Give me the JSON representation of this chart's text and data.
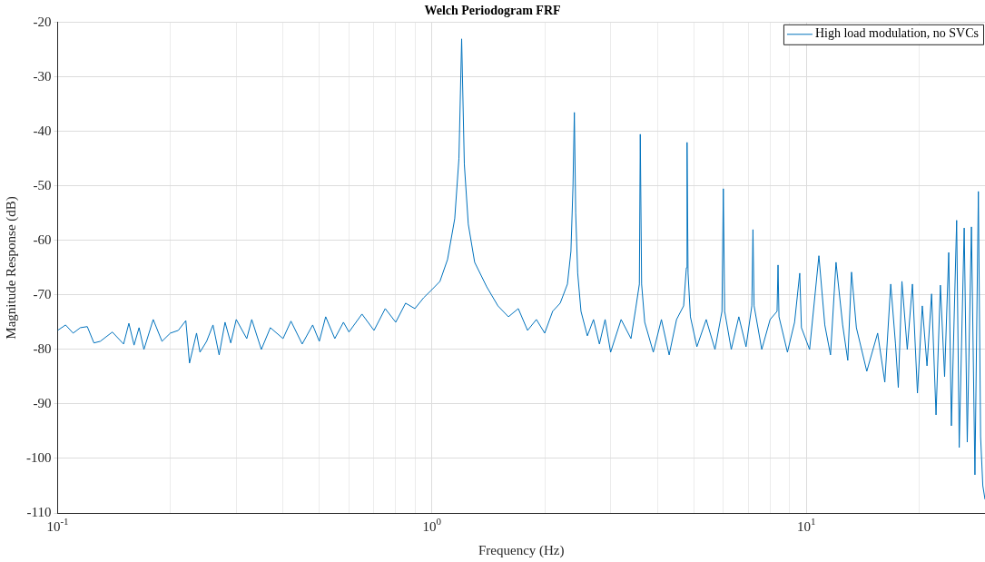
{
  "chart_data": {
    "type": "line",
    "title": "Welch Periodogram FRF",
    "xlabel": "Frequency (Hz)",
    "ylabel": "Magnitude Response (dB)",
    "log": "x",
    "grid": true,
    "legend": "top right",
    "marker": "none",
    "line_style": "solid",
    "xlim": [
      0.1,
      30
    ],
    "xticks": [
      {
        "value": 0.1,
        "label": "10$^{-1}$"
      },
      {
        "value": 0.2,
        "label": null
      },
      {
        "value": 0.3,
        "label": null
      },
      {
        "value": 0.4,
        "label": null
      },
      {
        "value": 0.5,
        "label": null
      },
      {
        "value": 0.6,
        "label": null
      },
      {
        "value": 0.7,
        "label": null
      },
      {
        "value": 0.8,
        "label": null
      },
      {
        "value": 0.9,
        "label": null
      },
      {
        "value": 1,
        "label": "10$^{0}$"
      },
      {
        "value": 2,
        "label": null
      },
      {
        "value": 3,
        "label": null
      },
      {
        "value": 4,
        "label": null
      },
      {
        "value": 5,
        "label": null
      },
      {
        "value": 6,
        "label": null
      },
      {
        "value": 7,
        "label": null
      },
      {
        "value": 8,
        "label": null
      },
      {
        "value": 9,
        "label": null
      },
      {
        "value": 10,
        "label": "10$^{1}$"
      },
      {
        "value": 20,
        "label": null
      }
    ],
    "ylim": [
      -110,
      -20
    ],
    "yticks": [
      -110,
      -100,
      -90,
      -80,
      -70,
      -60,
      -50,
      -40,
      -30,
      -20
    ],
    "x": [
      0.1,
      0.105,
      0.11,
      0.115,
      0.12,
      0.125,
      0.13,
      0.14,
      0.15,
      0.155,
      0.16,
      0.165,
      0.17,
      0.18,
      0.19,
      0.2,
      0.21,
      0.22,
      0.225,
      0.235,
      0.24,
      0.25,
      0.26,
      0.27,
      0.28,
      0.29,
      0.3,
      0.32,
      0.33,
      0.35,
      0.37,
      0.4,
      0.42,
      0.45,
      0.48,
      0.5,
      0.52,
      0.55,
      0.58,
      0.6,
      0.65,
      0.7,
      0.75,
      0.8,
      0.85,
      0.9,
      0.95,
      1.0,
      1.05,
      1.1,
      1.15,
      1.18,
      1.2,
      1.22,
      1.25,
      1.3,
      1.4,
      1.5,
      1.6,
      1.7,
      1.8,
      1.9,
      2.0,
      2.1,
      2.2,
      2.3,
      2.35,
      2.38,
      2.4,
      2.42,
      2.45,
      2.5,
      2.6,
      2.7,
      2.8,
      2.9,
      3.0,
      3.2,
      3.4,
      3.5,
      3.58,
      3.6,
      3.63,
      3.7,
      3.9,
      4.1,
      4.3,
      4.5,
      4.7,
      4.78,
      4.8,
      4.83,
      4.9,
      5.1,
      5.4,
      5.7,
      5.95,
      6.0,
      6.05,
      6.3,
      6.6,
      6.9,
      7.15,
      7.2,
      7.25,
      7.6,
      8.0,
      8.35,
      8.4,
      8.45,
      8.9,
      9.3,
      9.6,
      9.7,
      10.2,
      10.8,
      11.2,
      11.6,
      12.0,
      12.5,
      12.9,
      13.2,
      13.6,
      14.5,
      15.5,
      16.2,
      16.8,
      17.3,
      17.6,
      18.0,
      18.6,
      19.2,
      19.8,
      20.4,
      21.0,
      21.6,
      22.2,
      22.8,
      23.4,
      24.0,
      24.4,
      25.2,
      25.6,
      26.4,
      26.9,
      27.6,
      28.2,
      28.8,
      29.2,
      29.6,
      30
    ],
    "series": [
      {
        "name": "High load modulation, no SVCs",
        "color": "#0072bd",
        "values": [
          -76.5,
          -75.5,
          -77,
          -76,
          -75.8,
          -78.8,
          -78.5,
          -76.8,
          -79,
          -75.2,
          -79.2,
          -76,
          -80,
          -74.5,
          -78.5,
          -77,
          -76.5,
          -74.7,
          -82.5,
          -77,
          -80.5,
          -78.5,
          -75.5,
          -81,
          -75,
          -78.8,
          -74.5,
          -78,
          -74.5,
          -80,
          -76,
          -78,
          -74.8,
          -79,
          -75.5,
          -78.5,
          -74,
          -78,
          -75,
          -76.8,
          -73.5,
          -76.5,
          -72.5,
          -75,
          -71.5,
          -72.5,
          -70.5,
          -69,
          -67.5,
          -63.5,
          -56,
          -45,
          -23,
          -46,
          -57,
          -64,
          -68.5,
          -72,
          -74,
          -72.5,
          -76.5,
          -74.5,
          -77,
          -73,
          -71.5,
          -68,
          -62,
          -50,
          -36.5,
          -55,
          -66,
          -73,
          -77.5,
          -74.5,
          -79,
          -74.5,
          -80.5,
          -74.5,
          -78,
          -72.5,
          -68,
          -40.5,
          -68,
          -75,
          -80.5,
          -74.5,
          -81,
          -74.5,
          -72,
          -65,
          -42,
          -66,
          -74,
          -79.5,
          -74.5,
          -80,
          -73,
          -50.5,
          -73,
          -80,
          -74,
          -79.5,
          -72,
          -58,
          -72,
          -80,
          -74.5,
          -73,
          -64.5,
          -74,
          -80.5,
          -75,
          -66,
          -76,
          -80,
          -62.8,
          -75.5,
          -81,
          -64,
          -75.5,
          -82,
          -65.8,
          -76,
          -84,
          -77,
          -86,
          -68,
          -79,
          -87,
          -67.5,
          -80,
          -68,
          -88,
          -72,
          -83,
          -69.8,
          -92,
          -68.2,
          -85,
          -62.2,
          -94,
          -56.3,
          -98,
          -57.7,
          -97,
          -57.5,
          -103,
          -51,
          -96,
          -105,
          -107.5
        ]
      }
    ]
  }
}
